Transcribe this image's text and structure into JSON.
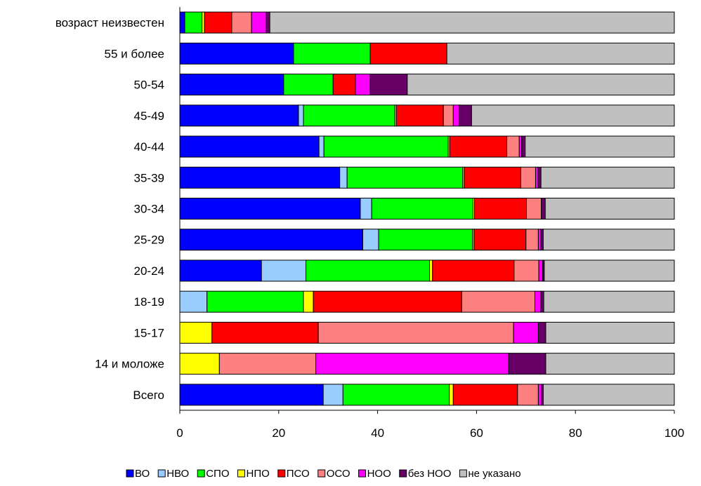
{
  "chart_data": {
    "type": "bar",
    "orientation": "horizontal",
    "stacked": "percent",
    "categories": [
      "возраст неизвестен",
      "55 и более",
      "50-54",
      "45-49",
      "40-44",
      "35-39",
      "30-34",
      "25-29",
      "20-24",
      "18-19",
      "15-17",
      "14 и моложе",
      "Всего"
    ],
    "series": [
      {
        "name": "ВО",
        "color": "#0000ff",
        "values": [
          1,
          23,
          21,
          24,
          28,
          32.5,
          36.5,
          37,
          16.5,
          0,
          0,
          0,
          29
        ]
      },
      {
        "name": "НВО",
        "color": "#99ccff",
        "values": [
          0,
          0,
          0,
          1,
          1,
          1.5,
          2.3,
          3.2,
          9,
          5.5,
          0,
          0,
          4
        ]
      },
      {
        "name": "СПО",
        "color": "#00ff00",
        "values": [
          3.5,
          15.5,
          10,
          18.5,
          25,
          23.5,
          20.5,
          19,
          25,
          19.5,
          0,
          0,
          21.5
        ]
      },
      {
        "name": "НПО",
        "color": "#ffff00",
        "values": [
          0.5,
          0,
          0,
          0.3,
          0.3,
          0.3,
          0.3,
          0.3,
          0.6,
          2,
          6.5,
          8,
          0.8
        ]
      },
      {
        "name": "ПСО",
        "color": "#ff0000",
        "values": [
          5.5,
          15.5,
          4.5,
          9.5,
          11.5,
          11.5,
          10.5,
          10.5,
          16.5,
          30,
          21.5,
          0,
          13
        ]
      },
      {
        "name": "ОСО",
        "color": "#ff8080",
        "values": [
          4,
          0,
          0,
          2,
          2.5,
          3,
          3,
          2.5,
          5,
          14.8,
          39.5,
          19.5,
          4.2
        ]
      },
      {
        "name": "НОО",
        "color": "#ff00ff",
        "values": [
          3,
          0,
          3,
          1.2,
          0.5,
          0.5,
          0,
          0.5,
          0.8,
          1.2,
          5,
          39,
          0.7
        ]
      },
      {
        "name": "без НОО",
        "color": "#660066",
        "values": [
          0.7,
          0,
          7.5,
          2.5,
          0.7,
          0.6,
          0.8,
          0.5,
          0.3,
          0.6,
          1.5,
          7.5,
          0.3
        ]
      },
      {
        "name": "не указано",
        "color": "#c0c0c0",
        "values": [
          81.8,
          46,
          54,
          41,
          30,
          27.1,
          26.1,
          26.5,
          26.3,
          26.4,
          26,
          26,
          26.5
        ]
      }
    ],
    "xlim": [
      0,
      100
    ],
    "xticks": [
      "0",
      "20",
      "40",
      "60",
      "80",
      "100"
    ],
    "grid": false,
    "legend": "bottom"
  }
}
